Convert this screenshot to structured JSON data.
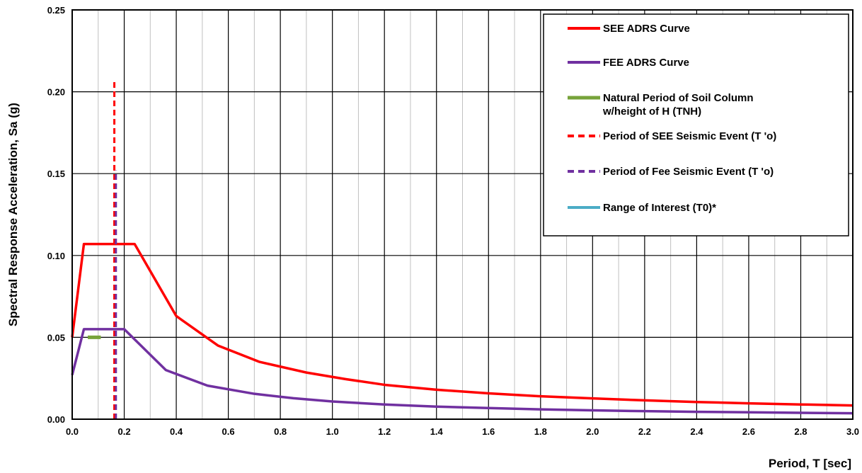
{
  "chart_data": {
    "type": "line",
    "title": "",
    "xlabel": "Period, T [sec]",
    "ylabel": "Spectral Response Acceleration, Sa (g)",
    "xlim": [
      0,
      3.0
    ],
    "ylim": [
      0,
      0.25
    ],
    "xticks": [
      "0.0",
      "0.2",
      "0.4",
      "0.6",
      "0.8",
      "1.0",
      "1.2",
      "1.4",
      "1.6",
      "1.8",
      "2.0",
      "2.2",
      "2.4",
      "2.6",
      "2.8",
      "3.0"
    ],
    "yticks": [
      "0.00",
      "0.05",
      "0.10",
      "0.15",
      "0.20",
      "0.25"
    ],
    "grid": true,
    "legend_position": "top-right",
    "series": [
      {
        "name": "SEE ADRS Curve",
        "color": "#ff0000",
        "style": "solid",
        "x": [
          0,
          0.045,
          0.24,
          0.4,
          0.56,
          0.72,
          0.9,
          1.05,
          1.2,
          1.4,
          1.6,
          1.8,
          2.0,
          2.2,
          2.4,
          2.6,
          2.8,
          3.0
        ],
        "y": [
          0.05,
          0.107,
          0.107,
          0.063,
          0.045,
          0.035,
          0.0285,
          0.0245,
          0.021,
          0.018,
          0.0158,
          0.014,
          0.0127,
          0.0115,
          0.0105,
          0.0097,
          0.009,
          0.0084
        ]
      },
      {
        "name": "FEE ADRS Curve",
        "color": "#7030a0",
        "style": "solid",
        "x": [
          0,
          0.045,
          0.2,
          0.36,
          0.52,
          0.7,
          0.85,
          1.0,
          1.2,
          1.4,
          1.6,
          1.8,
          2.0,
          2.2,
          2.4,
          2.6,
          2.8,
          3.0
        ],
        "y": [
          0.027,
          0.055,
          0.055,
          0.03,
          0.0205,
          0.0155,
          0.0128,
          0.0108,
          0.009,
          0.0077,
          0.0068,
          0.006,
          0.0054,
          0.0049,
          0.0045,
          0.0042,
          0.0039,
          0.0036
        ]
      },
      {
        "name": "Natural Period of Soil Column w/height of H (TNH)",
        "legend_lines": [
          "Natural Period of Soil Column",
          "w/height of H (TNH)"
        ],
        "color": "#77a33a",
        "style": "solid",
        "x": [
          0.06,
          0.11
        ],
        "y": [
          0.05,
          0.05
        ]
      },
      {
        "name": "Period of SEE Seismic Event (T 'o)",
        "color": "#ff0000",
        "style": "dashed",
        "x": [
          0.162,
          0.162
        ],
        "y": [
          0,
          0.208
        ]
      },
      {
        "name": "Period of Fee Seismic Event (T 'o)",
        "color": "#7030a0",
        "style": "dashed",
        "x": [
          0.168,
          0.168
        ],
        "y": [
          0,
          0.152
        ]
      },
      {
        "name": "Range of Interest (T0)*",
        "color": "#4bacc6",
        "style": "solid",
        "x": [],
        "y": []
      }
    ]
  }
}
